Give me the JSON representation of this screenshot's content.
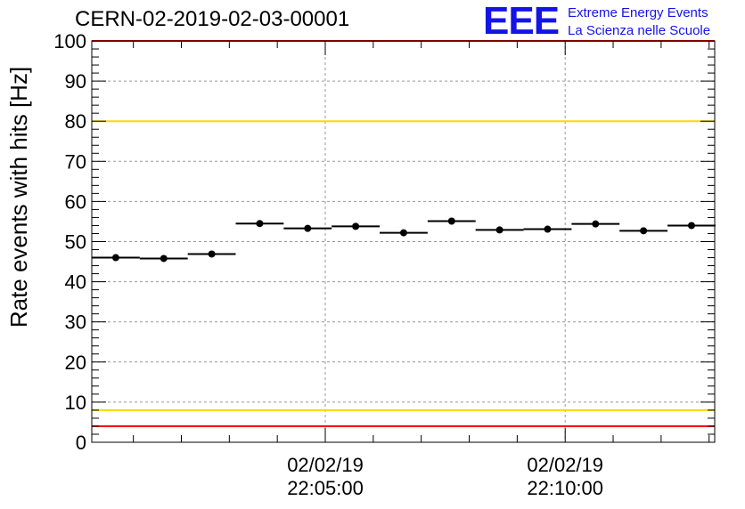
{
  "header": {
    "title": "CERN-02-2019-02-03-00001"
  },
  "logo": {
    "mark": "EEE",
    "line1": "Extreme Energy Events",
    "line2": "La Scienza nelle Scuole"
  },
  "colors": {
    "marker": "#000000",
    "grid": "#999999",
    "limit_red": "#ff0000",
    "limit_yellow": "#ffd700",
    "logo_blue": "#1414e6"
  },
  "chart_data": {
    "type": "scatter",
    "title": "CERN-02-2019-02-03-00001",
    "ylabel": "Rate events with hits [Hz]",
    "xlabel": "",
    "ylim": [
      0,
      100
    ],
    "xlim": [
      "02/02/19 22:00:08",
      "02/02/19 22:13:07"
    ],
    "yticks": [
      "0",
      "10",
      "20",
      "30",
      "40",
      "50",
      "60",
      "70",
      "80",
      "90",
      "100"
    ],
    "xticks": [
      {
        "x": "02/02/19 22:05:00",
        "date": "02/02/19",
        "time": "22:05:00"
      },
      {
        "x": "02/02/19 22:10:00",
        "date": "02/02/19",
        "time": "22:10:00"
      }
    ],
    "grid": true,
    "series": [
      {
        "x": [
          "22:00:38",
          "22:01:38",
          "22:02:38",
          "22:03:38",
          "22:04:38",
          "22:05:38",
          "22:06:38",
          "22:07:38",
          "22:08:38",
          "22:09:38",
          "22:10:38",
          "22:11:38",
          "22:12:38"
        ],
        "x_halfwidth_seconds": 30,
        "values": [
          46.0,
          45.8,
          46.9,
          54.5,
          53.3,
          53.8,
          52.2,
          55.1,
          52.9,
          53.1,
          54.4,
          52.7,
          54.0
        ]
      }
    ],
    "reference_lines": [
      {
        "y": 100,
        "color": "#ff0000"
      },
      {
        "y": 80,
        "color": "#ffd700"
      },
      {
        "y": 8,
        "color": "#ffd700"
      },
      {
        "y": 4,
        "color": "#ff0000"
      }
    ]
  }
}
